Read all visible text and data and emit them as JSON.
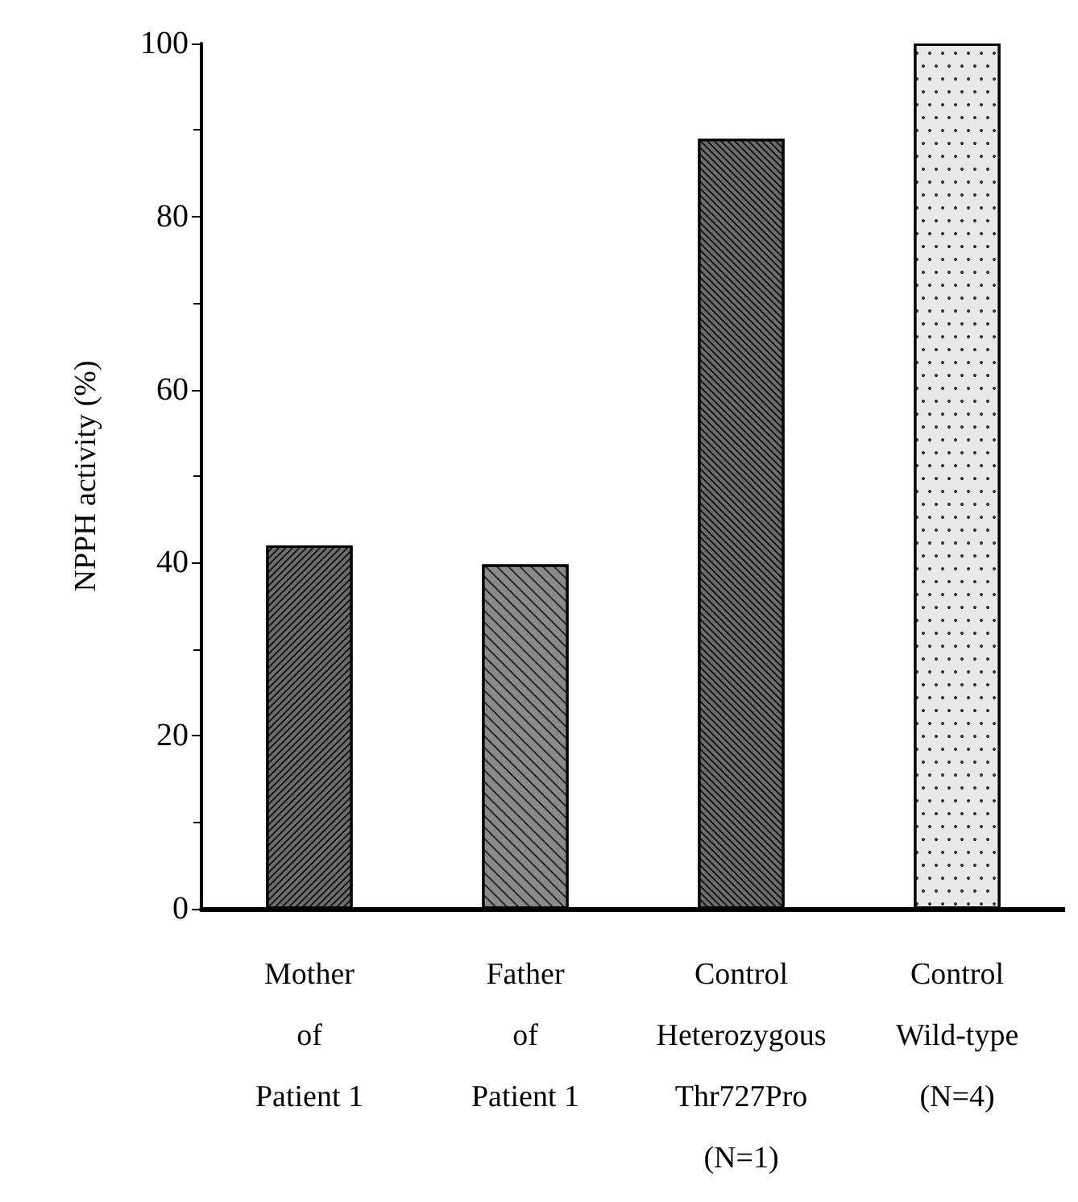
{
  "chart_data": {
    "type": "bar",
    "ylabel": "NPPH activity (%)",
    "categories": [
      "Mother\nof\nPatient 1",
      "Father\nof\nPatient 1",
      "Control\nHeterozygous\nThr727Pro\n(N=1)",
      "Control\nWild-type\n(N=4)"
    ],
    "values": [
      42,
      39.8,
      89,
      100
    ],
    "colors": [
      "#6e6e6e",
      "#8a8a8a",
      "#6e6e6e",
      "#e8e8e8"
    ],
    "ylim": [
      0,
      100
    ],
    "yticks": [
      0,
      20,
      40,
      60,
      80,
      100
    ],
    "grid": false
  }
}
